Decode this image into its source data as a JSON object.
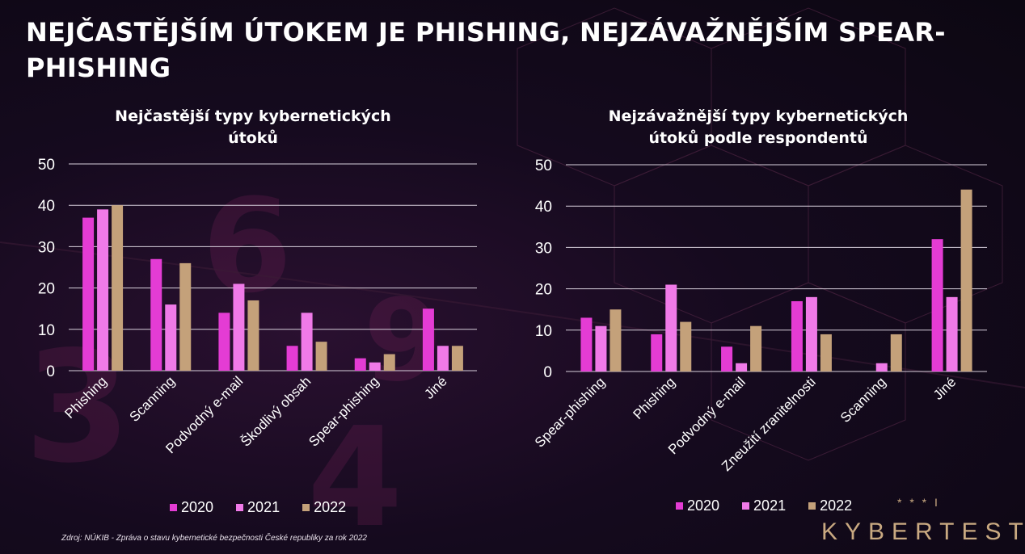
{
  "slide": {
    "title": "NEJČASTĚJŠÍM ÚTOKEM JE PHISHING, NEJZÁVAŽNĚJŠÍM SPEAR-PHISHING",
    "source": "Zdroj: NÚKIB - Zpráva o stavu kybernetické bezpečnosti České republiky za rok 2022",
    "brand": "KYBERTEST",
    "brand_mark": "* * * I"
  },
  "colors": {
    "2020": "#e43cd4",
    "2021": "#f07ae8",
    "2022": "#c4a17a",
    "grid": "#d8d0dc"
  },
  "chart_data": [
    {
      "type": "bar",
      "title_lines": [
        "Nejčastější typy kybernetických",
        "útoků"
      ],
      "categories": [
        "Phishing",
        "Scanning",
        "Podvodný e-mail",
        "Škodlivý obsah",
        "Spear-phishing",
        "Jiné"
      ],
      "series": [
        {
          "name": "2020",
          "values": [
            37,
            27,
            14,
            6,
            3,
            15
          ]
        },
        {
          "name": "2021",
          "values": [
            39,
            16,
            21,
            14,
            2,
            6
          ]
        },
        {
          "name": "2022",
          "values": [
            40,
            26,
            17,
            7,
            4,
            6
          ]
        }
      ],
      "yticks": [
        "0",
        "10",
        "20",
        "30",
        "40",
        "50"
      ],
      "ylim": [
        0,
        50
      ],
      "grid": true,
      "legend": "bottom"
    },
    {
      "type": "bar",
      "title_lines": [
        "Nejzávažnější typy kybernetických",
        "útoků podle respondentů"
      ],
      "categories": [
        "Spear-phishing",
        "Phishing",
        "Podvodný e-mail",
        "Zneužití zranitelnosti",
        "Scanning",
        "Jiné"
      ],
      "series": [
        {
          "name": "2020",
          "values": [
            13,
            9,
            6,
            17,
            0,
            32
          ]
        },
        {
          "name": "2021",
          "values": [
            11,
            21,
            2,
            18,
            2,
            18
          ]
        },
        {
          "name": "2022",
          "values": [
            15,
            12,
            11,
            9,
            9,
            44
          ]
        }
      ],
      "yticks": [
        "0",
        "10",
        "20",
        "30",
        "40",
        "50"
      ],
      "ylim": [
        0,
        50
      ],
      "grid": true,
      "legend": "bottom"
    }
  ]
}
